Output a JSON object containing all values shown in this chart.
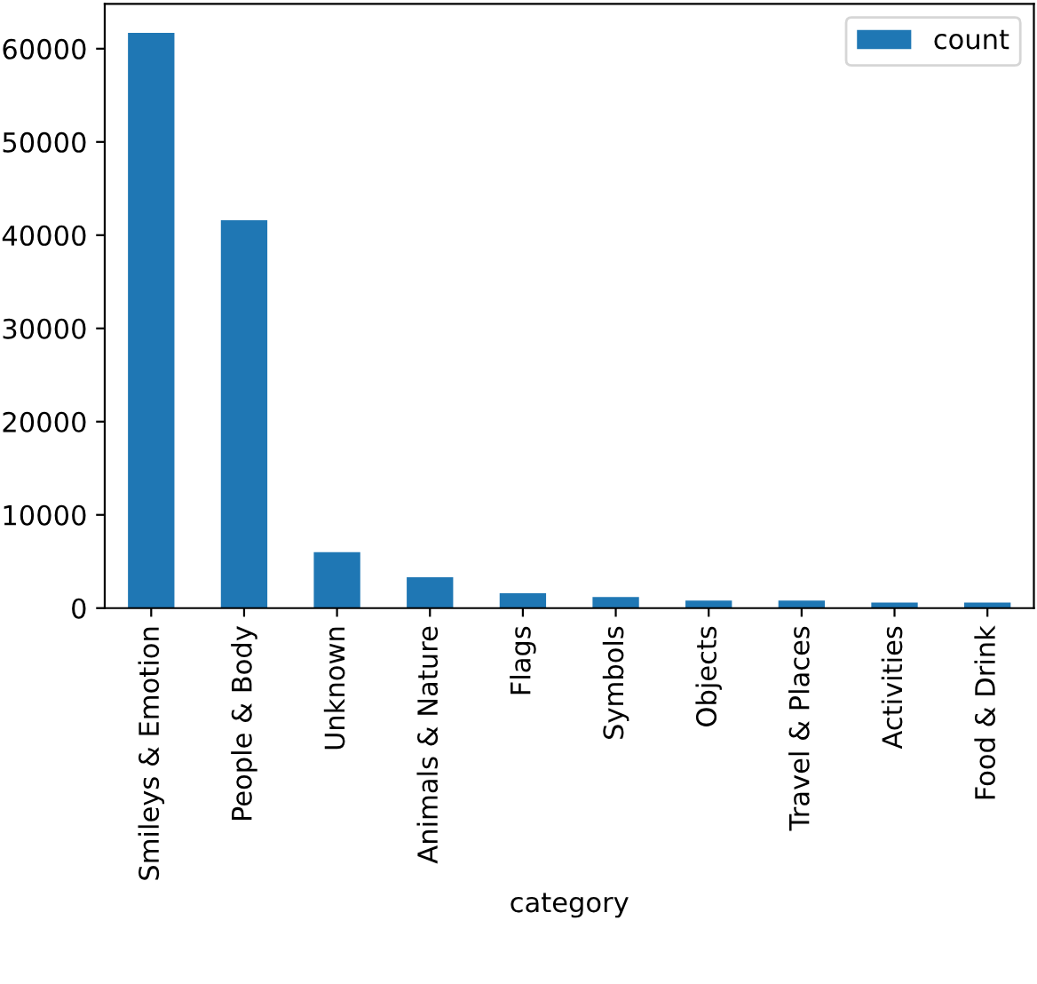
{
  "chart_data": {
    "type": "bar",
    "xlabel": "category",
    "categories": [
      "Smileys & Emotion",
      "People & Body",
      "Unknown",
      "Animals & Nature",
      "Flags",
      "Symbols",
      "Objects",
      "Travel & Places",
      "Activities",
      "Food & Drink"
    ],
    "series": [
      {
        "name": "count",
        "color": "#1f77b4",
        "values": [
          61700,
          41600,
          6000,
          3300,
          1600,
          1200,
          800,
          800,
          600,
          600
        ]
      }
    ],
    "ylim": [
      0,
      64800
    ],
    "yticks": [
      0,
      10000,
      20000,
      30000,
      40000,
      50000,
      60000
    ],
    "grid": false,
    "legend": "top right"
  }
}
